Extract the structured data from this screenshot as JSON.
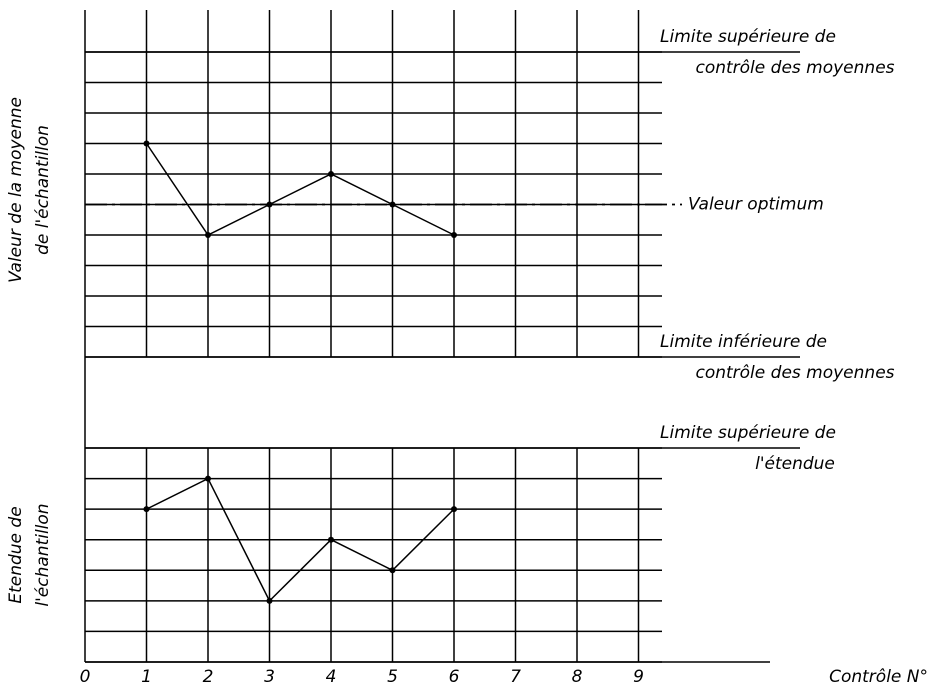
{
  "chart_data": [
    {
      "type": "line",
      "y_label": [
        "Valeur de la moyenne",
        "de l'échantillon"
      ],
      "x": [
        1,
        2,
        3,
        4,
        5,
        6
      ],
      "values": [
        7,
        4,
        5,
        6,
        5,
        4
      ],
      "color": "#000000",
      "xlim": [
        0,
        10
      ],
      "ylim": [
        0,
        10
      ],
      "yticks": [
        0,
        1,
        2,
        3,
        4,
        5,
        6,
        7,
        8,
        9,
        10
      ],
      "grid": true,
      "limits": [
        {
          "label": [
            "Limite supérieure de",
            "contrôle des moyennes"
          ],
          "value": 10
        },
        {
          "label": [
            "Valeur optimum"
          ],
          "value": 5,
          "dash": true
        },
        {
          "label": [
            "Limite inférieure de",
            "contrôle des moyennes"
          ],
          "value": 0
        }
      ]
    },
    {
      "type": "line",
      "y_label": [
        "Etendue de",
        "l'échantillon"
      ],
      "x_label": "Contrôle N°",
      "x": [
        1,
        2,
        3,
        4,
        5,
        6
      ],
      "values": [
        5,
        6,
        2,
        4,
        3,
        5
      ],
      "color": "#000000",
      "xlim": [
        0,
        10
      ],
      "xticks": [
        0,
        1,
        2,
        3,
        4,
        5,
        6,
        7,
        8,
        9
      ],
      "ylim": [
        0,
        7
      ],
      "yticks": [
        0,
        1,
        2,
        3,
        4,
        5,
        6,
        7
      ],
      "grid": true,
      "limits": [
        {
          "label": [
            "Limite supérieure de",
            "l'étendue"
          ],
          "value": 7
        }
      ]
    }
  ]
}
